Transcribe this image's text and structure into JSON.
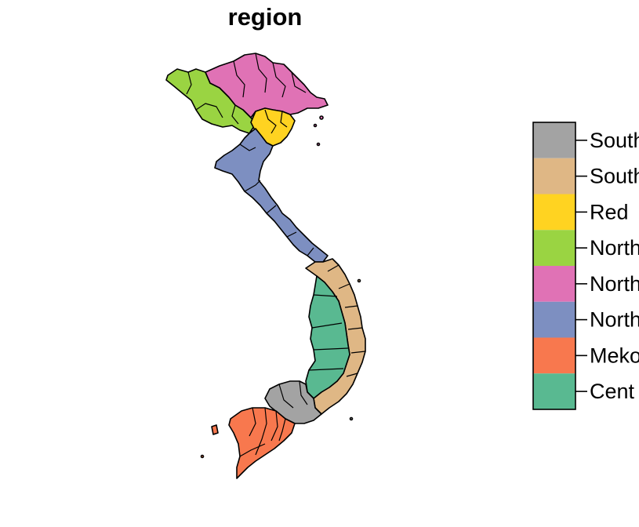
{
  "title": "region",
  "colors": {
    "South East": "#a3a3a3",
    "South Central Coast": "#dfb785",
    "Red River Delta": "#ffd321",
    "Northwest": "#9ad442",
    "Northeast": "#e072b5",
    "North Central Coast": "#7d8fc1",
    "Mekong River Delta": "#f8784e",
    "Central Highlands": "#59b991"
  },
  "legend": {
    "items": [
      {
        "label": "South",
        "color": "#a3a3a3"
      },
      {
        "label": "South",
        "color": "#dfb785"
      },
      {
        "label": "Red",
        "color": "#ffd321"
      },
      {
        "label": "North",
        "color": "#9ad442"
      },
      {
        "label": "North",
        "color": "#e072b5"
      },
      {
        "label": "North",
        "color": "#7d8fc1"
      },
      {
        "label": "Meko",
        "color": "#f8784e"
      },
      {
        "label": "Cent",
        "color": "#59b991"
      }
    ]
  }
}
